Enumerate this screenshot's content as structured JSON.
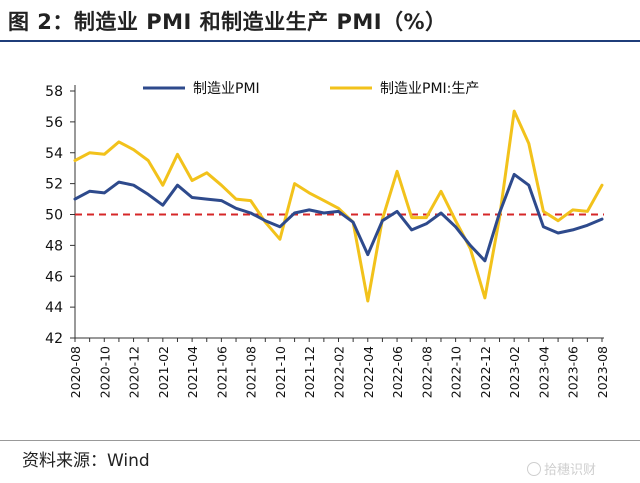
{
  "header": {
    "title": "图 2：制造业 PMI 和制造业生产 PMI（%）"
  },
  "footer": {
    "source": "资料来源：Wind",
    "watermark": "拾穗识财"
  },
  "chart_data": {
    "type": "line",
    "title": "图 2：制造业 PMI 和制造业生产 PMI（%）",
    "xlabel": "",
    "ylabel": "",
    "ylim": [
      42,
      58
    ],
    "yticks": [
      42,
      44,
      46,
      48,
      50,
      52,
      54,
      56,
      58
    ],
    "x": [
      "2020-08",
      "2020-09",
      "2020-10",
      "2020-11",
      "2020-12",
      "2021-01",
      "2021-02",
      "2021-03",
      "2021-04",
      "2021-05",
      "2021-06",
      "2021-07",
      "2021-08",
      "2021-09",
      "2021-10",
      "2021-11",
      "2021-12",
      "2022-01",
      "2022-02",
      "2022-03",
      "2022-04",
      "2022-05",
      "2022-06",
      "2022-07",
      "2022-08",
      "2022-09",
      "2022-10",
      "2022-11",
      "2022-12",
      "2023-01",
      "2023-02",
      "2023-03",
      "2023-04",
      "2023-05",
      "2023-06",
      "2023-07",
      "2023-08"
    ],
    "xtick_labels": [
      "2020-08",
      "2020-10",
      "2020-12",
      "2021-02",
      "2021-04",
      "2021-06",
      "2021-08",
      "2021-10",
      "2021-12",
      "2022-02",
      "2022-04",
      "2022-06",
      "2022-08",
      "2022-10",
      "2022-12",
      "2023-02",
      "2023-04",
      "2023-06",
      "2023-08"
    ],
    "reference_line": {
      "y": 50,
      "color": "#d62728",
      "style": "dashed"
    },
    "legend_position": "top",
    "grid": false,
    "series": [
      {
        "name": "制造业PMI",
        "color": "#2e4a8c",
        "values": [
          51.0,
          51.5,
          51.4,
          52.1,
          51.9,
          51.3,
          50.6,
          51.9,
          51.1,
          51.0,
          50.9,
          50.4,
          50.1,
          49.6,
          49.2,
          50.1,
          50.3,
          50.1,
          50.2,
          49.5,
          47.4,
          49.6,
          50.2,
          49.0,
          49.4,
          50.1,
          49.2,
          48.0,
          47.0,
          50.1,
          52.6,
          51.9,
          49.2,
          48.8,
          49.0,
          49.3,
          49.7
        ]
      },
      {
        "name": "制造业PMI:生产",
        "color": "#f2c21b",
        "values": [
          53.5,
          54.0,
          53.9,
          54.7,
          54.2,
          53.5,
          51.9,
          53.9,
          52.2,
          52.7,
          51.9,
          51.0,
          50.9,
          49.5,
          48.4,
          52.0,
          51.4,
          50.9,
          50.4,
          49.5,
          44.4,
          49.7,
          52.8,
          49.8,
          49.8,
          51.5,
          49.6,
          47.8,
          44.6,
          49.8,
          56.7,
          54.6,
          50.2,
          49.6,
          50.3,
          50.2,
          51.9
        ]
      }
    ]
  }
}
